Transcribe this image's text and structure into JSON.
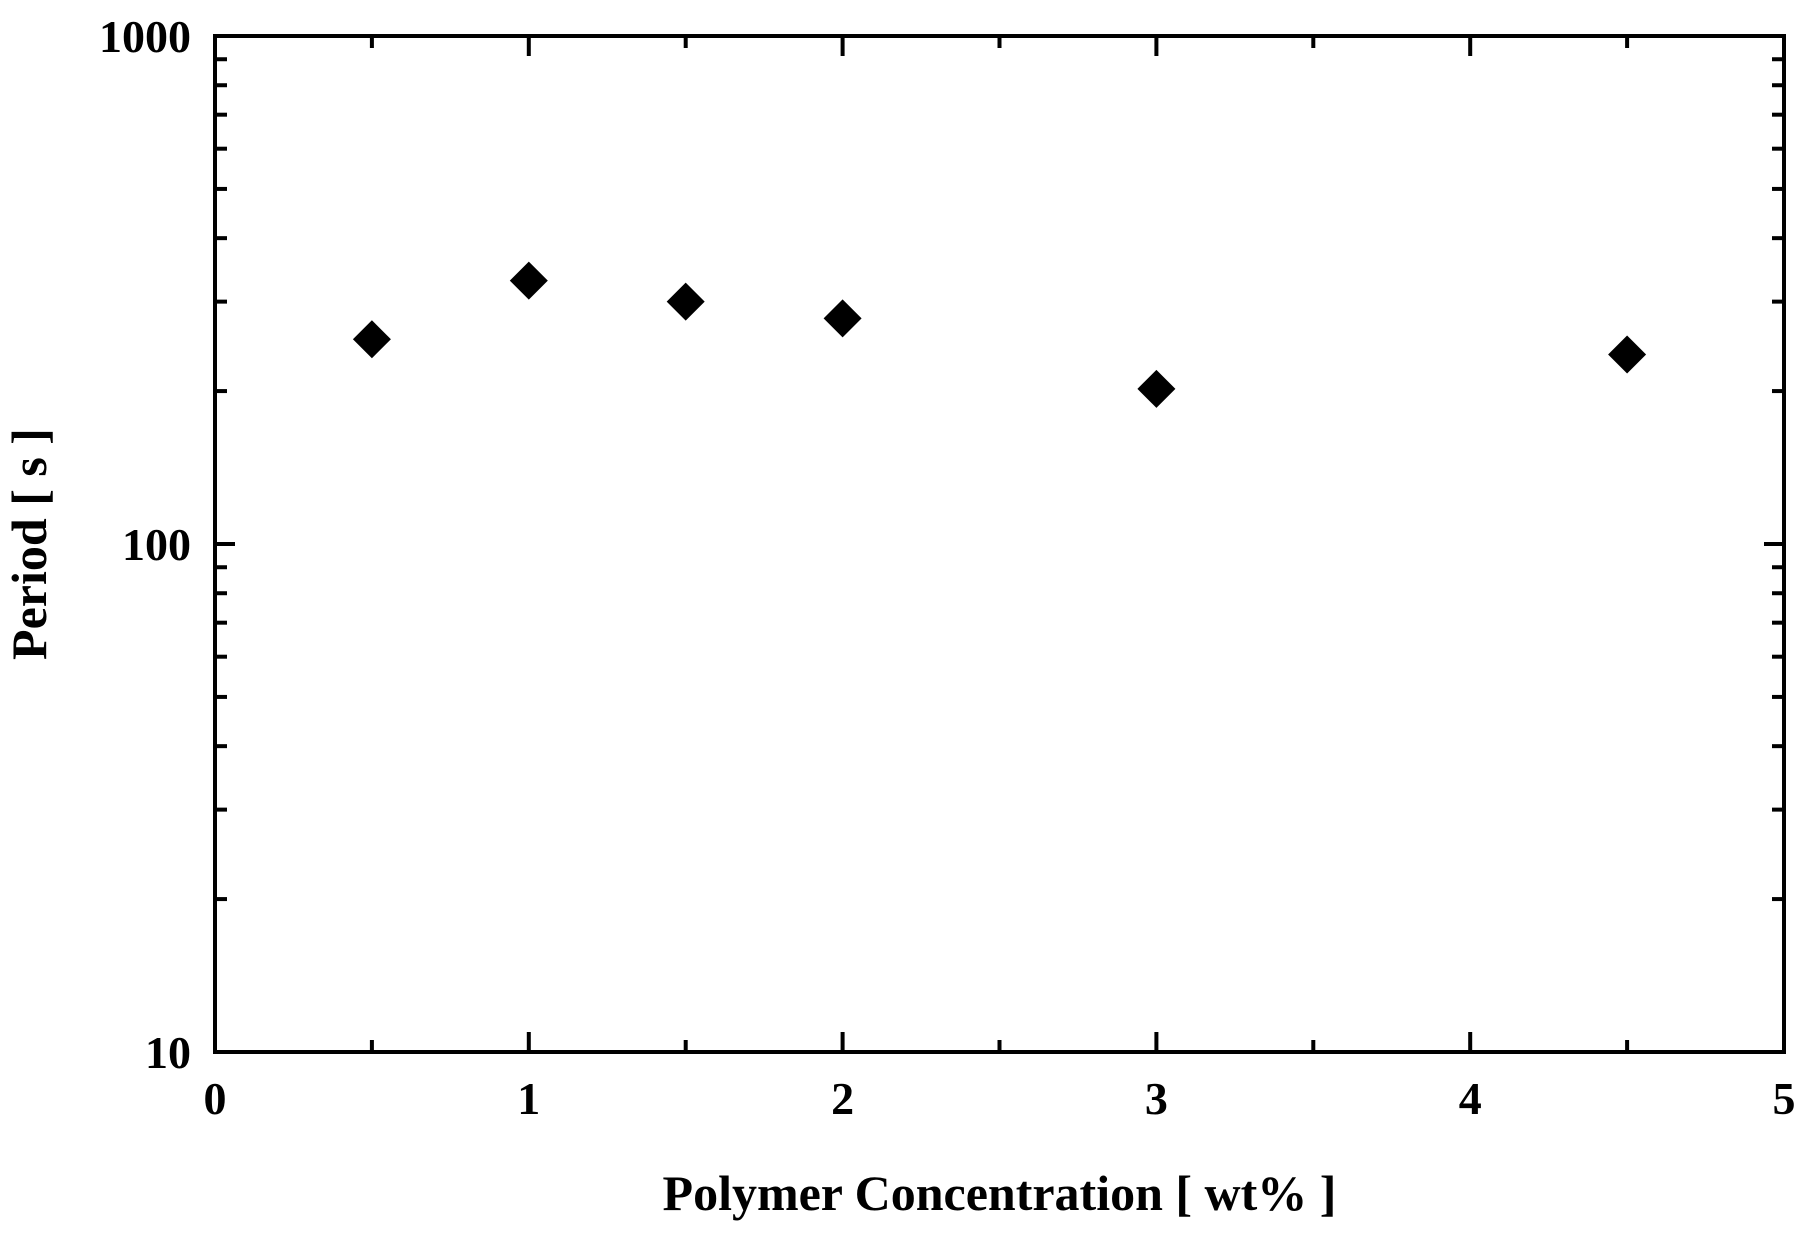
{
  "chart_data": {
    "type": "scatter",
    "title": "",
    "xlabel": "Polymer Concentration [ wt% ]",
    "ylabel": "Period [ s ]",
    "xlim": [
      0,
      5
    ],
    "ylim": [
      10,
      1000
    ],
    "yscale": "log",
    "grid": false,
    "legend": "none",
    "marker": "diamond",
    "marker_color": "#000000",
    "x_ticks": [
      {
        "value": 0,
        "label": "0"
      },
      {
        "value": 1,
        "label": "1"
      },
      {
        "value": 2,
        "label": "2"
      },
      {
        "value": 3,
        "label": "3"
      },
      {
        "value": 4,
        "label": "4"
      },
      {
        "value": 5,
        "label": "5"
      }
    ],
    "x_minor_ticks": [
      0.5,
      1.5,
      2.5,
      3.5,
      4.5
    ],
    "y_ticks": [
      {
        "value": 10,
        "label": "10"
      },
      {
        "value": 100,
        "label": "100"
      },
      {
        "value": 1000,
        "label": "1000"
      }
    ],
    "series": [
      {
        "points": [
          {
            "x": 0.5,
            "y": 253
          },
          {
            "x": 1.0,
            "y": 330
          },
          {
            "x": 1.5,
            "y": 300
          },
          {
            "x": 2.0,
            "y": 278
          },
          {
            "x": 3.0,
            "y": 202
          },
          {
            "x": 4.5,
            "y": 236
          }
        ]
      }
    ]
  }
}
